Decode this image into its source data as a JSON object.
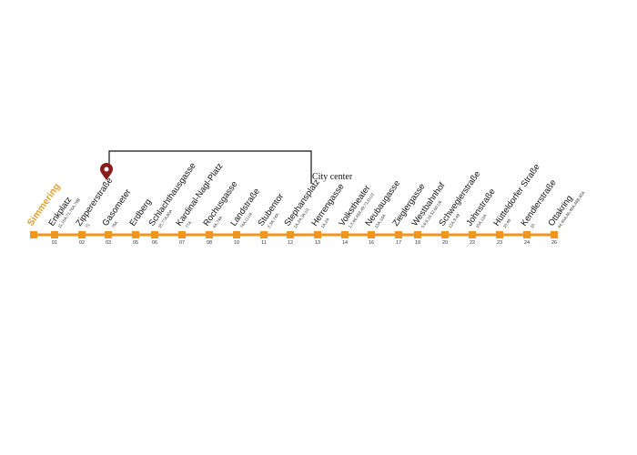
{
  "terminus": "Simmering",
  "annotation": "City center",
  "stations": [
    {
      "name": "Enkplatz",
      "number": "01",
      "connections": "11,15A,71,76A,79B"
    },
    {
      "name": "Zippererstraße",
      "number": "02",
      "connections": "71"
    },
    {
      "name": "Gasometer",
      "number": "03",
      "connections": "79A"
    },
    {
      "name": "Erdberg",
      "number": "05"
    },
    {
      "name": "Schlachthausgasse",
      "number": "06",
      "connections": "18,77A,80A"
    },
    {
      "name": "Kardinal-Nagl-Platz",
      "number": "07",
      "connections": "77A"
    },
    {
      "name": "Rochusgasse",
      "number": "08",
      "connections": "4A,74A"
    },
    {
      "name": "Landstraße",
      "number": "10",
      "connections": "74A,O,U4"
    },
    {
      "name": "Stubentor",
      "number": "11",
      "connections": "2,3A,74A"
    },
    {
      "name": "Stephansplatz",
      "number": "12",
      "connections": "1A,2A,3A,U1"
    },
    {
      "name": "Herrengasse",
      "number": "13",
      "connections": "1A,2A"
    },
    {
      "name": "Volkstheater",
      "number": "14",
      "connections": "1,2,46,48A,49,71,D,U2"
    },
    {
      "name": "Neubaugasse",
      "number": "16",
      "connections": "13A,14A"
    },
    {
      "name": "Zieglergasse",
      "number": "17"
    },
    {
      "name": "Westbahnhof",
      "number": "19",
      "connections": "5,6,9,18,52,60,U6"
    },
    {
      "name": "Schweglerstraße",
      "number": "20",
      "connections": "12A,9,49"
    },
    {
      "name": "Johnstraße",
      "number": "22",
      "connections": "10A,12A"
    },
    {
      "name": "Hütteldorfer Straße",
      "number": "23",
      "connections": "10,49"
    },
    {
      "name": "Kendlerstraße",
      "number": "24",
      "connections": "10"
    },
    {
      "name": "Ottakring",
      "number": "26",
      "connections": "44,45A,46,46A,46B,48A"
    }
  ]
}
